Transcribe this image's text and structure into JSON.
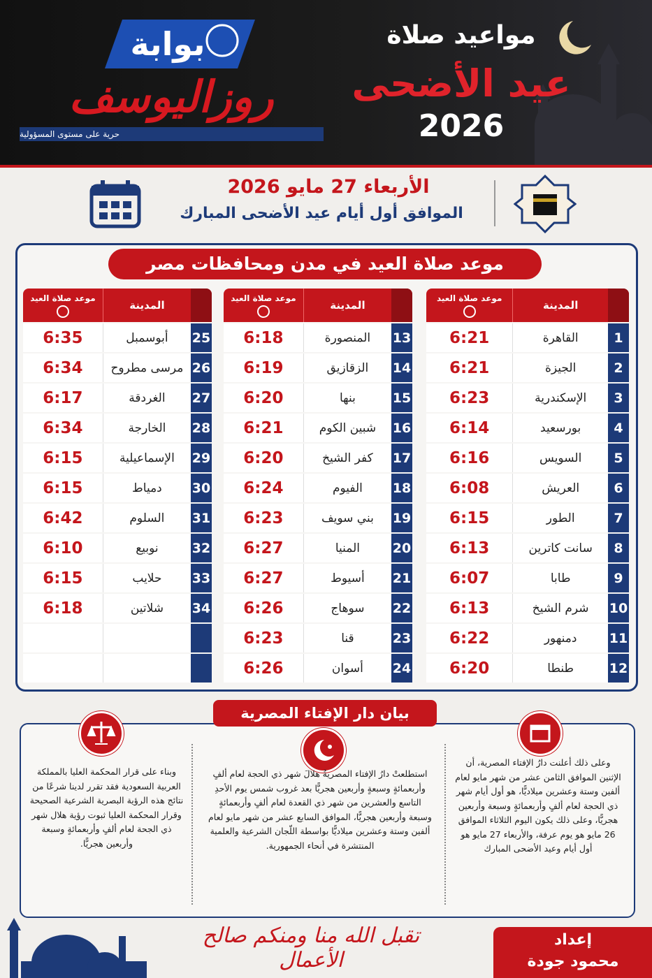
{
  "header": {
    "logo_top": "بوابة",
    "logo_main": "روزاليوسف",
    "tagline": "حرية على مستوى المسؤولية",
    "title_line1": "مواعيد صلاة",
    "title_line2": "عيد الأضحى",
    "title_year": "2026"
  },
  "date": {
    "line1": "الأربعاء 27 مايو 2026",
    "line2": "الموافق أول أيام عيد الأضحى المبارك"
  },
  "table": {
    "title": "موعد صلاة العيد في مدن ومحافظات مصر",
    "headers": [
      "المدينة",
      "موعد صلاة العيد"
    ],
    "columns": [
      {
        "rows": [
          [
            1,
            "القاهرة",
            "6:21"
          ],
          [
            2,
            "الجيزة",
            "6:21"
          ],
          [
            3,
            "الإسكندرية",
            "6:23"
          ],
          [
            4,
            "بورسعيد",
            "6:14"
          ],
          [
            5,
            "السويس",
            "6:16"
          ],
          [
            6,
            "العريش",
            "6:08"
          ],
          [
            7,
            "الطور",
            "6:15"
          ],
          [
            8,
            "سانت كاترين",
            "6:13"
          ],
          [
            9,
            "طابا",
            "6:07"
          ],
          [
            10,
            "شرم الشيخ",
            "6:13"
          ],
          [
            11,
            "دمنهور",
            "6:22"
          ],
          [
            12,
            "طنطا",
            "6:20"
          ]
        ]
      },
      {
        "rows": [
          [
            13,
            "المنصورة",
            "6:18"
          ],
          [
            14,
            "الزقازيق",
            "6:19"
          ],
          [
            15,
            "بنها",
            "6:20"
          ],
          [
            16,
            "شبين الكوم",
            "6:21"
          ],
          [
            17,
            "كفر الشيخ",
            "6:20"
          ],
          [
            18,
            "الفيوم",
            "6:24"
          ],
          [
            19,
            "بني سويف",
            "6:23"
          ],
          [
            20,
            "المنيا",
            "6:27"
          ],
          [
            21,
            "أسيوط",
            "6:27"
          ],
          [
            22,
            "سوهاج",
            "6:26"
          ],
          [
            23,
            "قنا",
            "6:23"
          ],
          [
            24,
            "أسوان",
            "6:26"
          ]
        ]
      },
      {
        "rows": [
          [
            25,
            "أبوسمبل",
            "6:35"
          ],
          [
            26,
            "مرسى مطروح",
            "6:34"
          ],
          [
            27,
            "الغردقة",
            "6:17"
          ],
          [
            28,
            "الخارجة",
            "6:34"
          ],
          [
            29,
            "الإسماعيلية",
            "6:15"
          ],
          [
            30,
            "دمياط",
            "6:15"
          ],
          [
            31,
            "السلوم",
            "6:42"
          ],
          [
            32,
            "نوبيع",
            "6:10"
          ],
          [
            33,
            "حلايب",
            "6:15"
          ],
          [
            34,
            "شلاتين",
            "6:18"
          ]
        ]
      }
    ]
  },
  "statement": {
    "title": "بيان دار الإفتاء المصرية",
    "paragraphs": [
      "وعلى ذلك أعلنت دارُ الإفتاء المصرية، أن الإثنين الموافق الثامن عشر من شهر مايو لعام ألفين وستة وعشرين ميلاديًّا، هو أول أيام شهر ذي الحجة لعام ألفٍ وأربعمائةٍ وسبعة وأربعين هجريًّا، وعلى ذلك يكون اليوم الثلاثاء الموافق 26 مايو هو يوم عرفة، والأربعاء 27 مايو هو أول أيام وعيد الأضحى المبارك",
      "استطلعتْ دارُ الإفتاء المصريةُ هلالَ شهر ذي الحجة لعام ألفٍ وأربعمائةٍ وسبعةٍ وأربعين هجريًّا بعد غروب شمس يوم الأحدِ التاسع والعشرين من شهر ذي القعدة لعام ألفٍ وأربعمائةٍ وسبعة وأربعين هجريًّا، الموافق السابع عشر من شهر مايو لعام ألفين وستة وعشرين ميلاديًّا بواسطة اللّجان الشرعية والعلمية المنتشرة في أنحاء الجمهورية.",
      "وبناء على قرار المحكمة العليا بالمملكة العربية السعودية فقد تقرر لدينا شرعًا من نتائج هذه الرؤية البصرية الشرعية الصحيحة وقرار المحكمة العليا ثبوت رؤية هلال شهر ذي الجحة لعام ألفٍ وأربعمائةٍ وسبعة وأربعين هجريًّا."
    ]
  },
  "footer": {
    "calligraphy": "تقبل الله منا ومنكم صالح الأعمال",
    "credit_label": "إعداد",
    "credit_name": "محمود جودة"
  }
}
